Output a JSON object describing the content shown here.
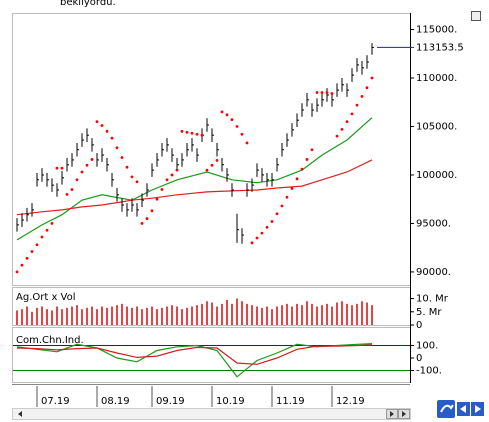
{
  "caption": "bekliyordu.",
  "time_axis": {
    "xlim": [
      -1,
      72
    ],
    "xticks": [
      {
        "value": 4,
        "label": "07.19"
      },
      {
        "value": 16,
        "label": "08.19"
      },
      {
        "value": 27,
        "label": "09.19"
      },
      {
        "value": 39,
        "label": "10.19"
      },
      {
        "value": 51,
        "label": "11.19"
      },
      {
        "value": 63,
        "label": "12.19"
      }
    ]
  },
  "chart_data": [
    {
      "type": "ohlc",
      "color": "#000000",
      "ylim": [
        88650,
        116600
      ],
      "yticks": [
        {
          "value": 90000,
          "label": "90000."
        },
        {
          "value": 95000,
          "label": "95000."
        },
        {
          "value": 100000,
          "label": "100000."
        },
        {
          "value": 105000,
          "label": "105000."
        },
        {
          "value": 110000,
          "label": "110000."
        },
        {
          "value": 115000,
          "label": "115000."
        }
      ],
      "close": [
        94850,
        95350,
        95900,
        96400,
        99500,
        100000,
        99500,
        98950,
        98450,
        99700,
        101050,
        101550,
        102600,
        103600,
        104100,
        103100,
        101550,
        102050,
        101050,
        99500,
        97950,
        96900,
        96400,
        96900,
        96400,
        97400,
        98450,
        100500,
        101550,
        102600,
        103100,
        102050,
        101050,
        101550,
        102600,
        103100,
        102050,
        104100,
        105150,
        104100,
        102600,
        101050,
        100000,
        98450,
        94350,
        93800,
        98450,
        98950,
        100500,
        100000,
        99500,
        99500,
        101050,
        102600,
        103600,
        104650,
        105650,
        106700,
        107750,
        106700,
        107200,
        107750,
        108250,
        107750,
        108750,
        109300,
        108750,
        110300,
        111350,
        111050,
        111650,
        113153.5
      ],
      "high": [
        95550,
        96050,
        96600,
        97100,
        100200,
        100700,
        100200,
        99650,
        99150,
        100400,
        101750,
        102250,
        103300,
        104300,
        104800,
        103800,
        102250,
        102750,
        101750,
        100200,
        98650,
        97600,
        97100,
        97600,
        97100,
        98100,
        99150,
        101200,
        102250,
        103300,
        103800,
        102750,
        101750,
        102250,
        103300,
        103800,
        102750,
        104800,
        105850,
        104800,
        103300,
        101750,
        100700,
        99150,
        96000,
        94500,
        99150,
        99650,
        101200,
        100700,
        100200,
        100200,
        101750,
        103300,
        104300,
        105350,
        106350,
        107400,
        108450,
        107400,
        107900,
        108450,
        108950,
        108450,
        109450,
        110000,
        109450,
        111000,
        112050,
        111750,
        112350,
        113600
      ],
      "low": [
        94150,
        94650,
        95200,
        95700,
        98800,
        99300,
        98800,
        98250,
        97750,
        99000,
        100350,
        100850,
        101900,
        102900,
        103400,
        102400,
        100850,
        101350,
        100350,
        98800,
        97250,
        96200,
        95700,
        96200,
        95700,
        96700,
        97750,
        99800,
        100850,
        101900,
        102400,
        101350,
        100350,
        100850,
        101900,
        102400,
        101350,
        103400,
        104450,
        103400,
        101900,
        100350,
        99300,
        97750,
        93000,
        92900,
        97750,
        98250,
        99800,
        99300,
        98800,
        98800,
        100350,
        101900,
        102900,
        103950,
        104950,
        106000,
        107050,
        106000,
        106500,
        107050,
        107550,
        107050,
        108050,
        108600,
        108050,
        109600,
        110650,
        110350,
        110950,
        112400
      ],
      "sar_color": "#ff0000",
      "sar": [
        90000,
        90700,
        91400,
        92100,
        92800,
        93600,
        94300,
        95000,
        100700,
        100700,
        98000,
        98500,
        99500,
        100300,
        101000,
        101600,
        105500,
        105100,
        104500,
        103800,
        102800,
        101800,
        100800,
        99800,
        99300,
        95000,
        95500,
        96300,
        97500,
        98500,
        99500,
        100000,
        100500,
        104500,
        104400,
        104300,
        104200,
        104100,
        100500,
        101000,
        101500,
        106500,
        106200,
        105700,
        105000,
        104200,
        103300,
        93000,
        93500,
        94000,
        94600,
        95200,
        96000,
        96800,
        97700,
        98600,
        99600,
        100600,
        101600,
        102600,
        108500,
        108500,
        108500,
        108400,
        104000,
        104700,
        105500,
        106300,
        107200,
        108100,
        109000,
        110000
      ],
      "moving_averages": [
        {
          "color": "#1a9a1a",
          "x": [
            0,
            5,
            9,
            13,
            17,
            23,
            27,
            32,
            38,
            43,
            48,
            52,
            57,
            61,
            66,
            71
          ],
          "values": [
            93300,
            94850,
            95900,
            97400,
            97950,
            97400,
            98450,
            99500,
            100300,
            99500,
            99200,
            99500,
            100500,
            102050,
            103600,
            105900
          ]
        },
        {
          "color": "#e02020",
          "x": [
            0,
            5,
            9,
            13,
            17,
            23,
            27,
            32,
            38,
            43,
            48,
            52,
            57,
            61,
            66,
            71
          ],
          "values": [
            95900,
            96200,
            96400,
            96700,
            96900,
            97400,
            97600,
            97950,
            98250,
            98350,
            98450,
            98650,
            98850,
            99500,
            100300,
            101550
          ]
        }
      ]
    },
    {
      "type": "bar",
      "title": "Ag.Ort x Vol",
      "color": "#e04848",
      "ylim": [
        0,
        14
      ],
      "yticks": [
        0,
        {
          "value": 5,
          "label": "5. Mr"
        },
        {
          "value": 10,
          "label": "10. Mr"
        }
      ],
      "values": [
        5.5,
        6,
        7,
        5,
        6.5,
        7,
        6,
        5.5,
        7,
        6,
        6.5,
        7,
        7.5,
        6,
        6.5,
        7,
        6,
        7,
        6.5,
        7,
        7.5,
        8,
        7,
        6.5,
        7,
        6,
        6.5,
        7,
        6,
        6.5,
        7,
        7.5,
        7,
        6,
        6.5,
        7,
        7.5,
        8,
        9,
        8.5,
        7,
        8,
        9.5,
        8,
        10,
        9,
        8,
        7.5,
        7,
        6.5,
        7,
        6,
        7,
        7.5,
        8,
        7,
        8,
        7.5,
        9,
        8,
        7,
        7.5,
        8,
        7,
        8.5,
        9,
        8,
        7.5,
        8,
        9,
        8.5,
        7.5
      ]
    },
    {
      "type": "line",
      "title": "Com.Chn.Ind.",
      "ylim": [
        -192,
        240
      ],
      "yticks": [
        {
          "value": -100,
          "label": "-100.",
          "color": "#008000"
        },
        0,
        {
          "value": 100,
          "label": "100.",
          "color": "#800000"
        }
      ],
      "series": [
        {
          "color": "#1a9a1a",
          "x": [
            0,
            4,
            8,
            12,
            16,
            20,
            24,
            28,
            32,
            36,
            40,
            44,
            48,
            52,
            56,
            60,
            64,
            68,
            71
          ],
          "values": [
            90,
            70,
            50,
            110,
            80,
            0,
            -30,
            60,
            90,
            100,
            60,
            -150,
            -20,
            40,
            110,
            90,
            100,
            110,
            115
          ]
        },
        {
          "color": "#d02020",
          "x": [
            0,
            4,
            8,
            12,
            16,
            20,
            24,
            28,
            32,
            36,
            40,
            44,
            48,
            52,
            56,
            60,
            64,
            68,
            71
          ],
          "values": [
            80,
            75,
            65,
            75,
            80,
            40,
            5,
            15,
            60,
            85,
            80,
            -40,
            -50,
            0,
            70,
            95,
            95,
            100,
            105
          ]
        }
      ]
    }
  ]
}
